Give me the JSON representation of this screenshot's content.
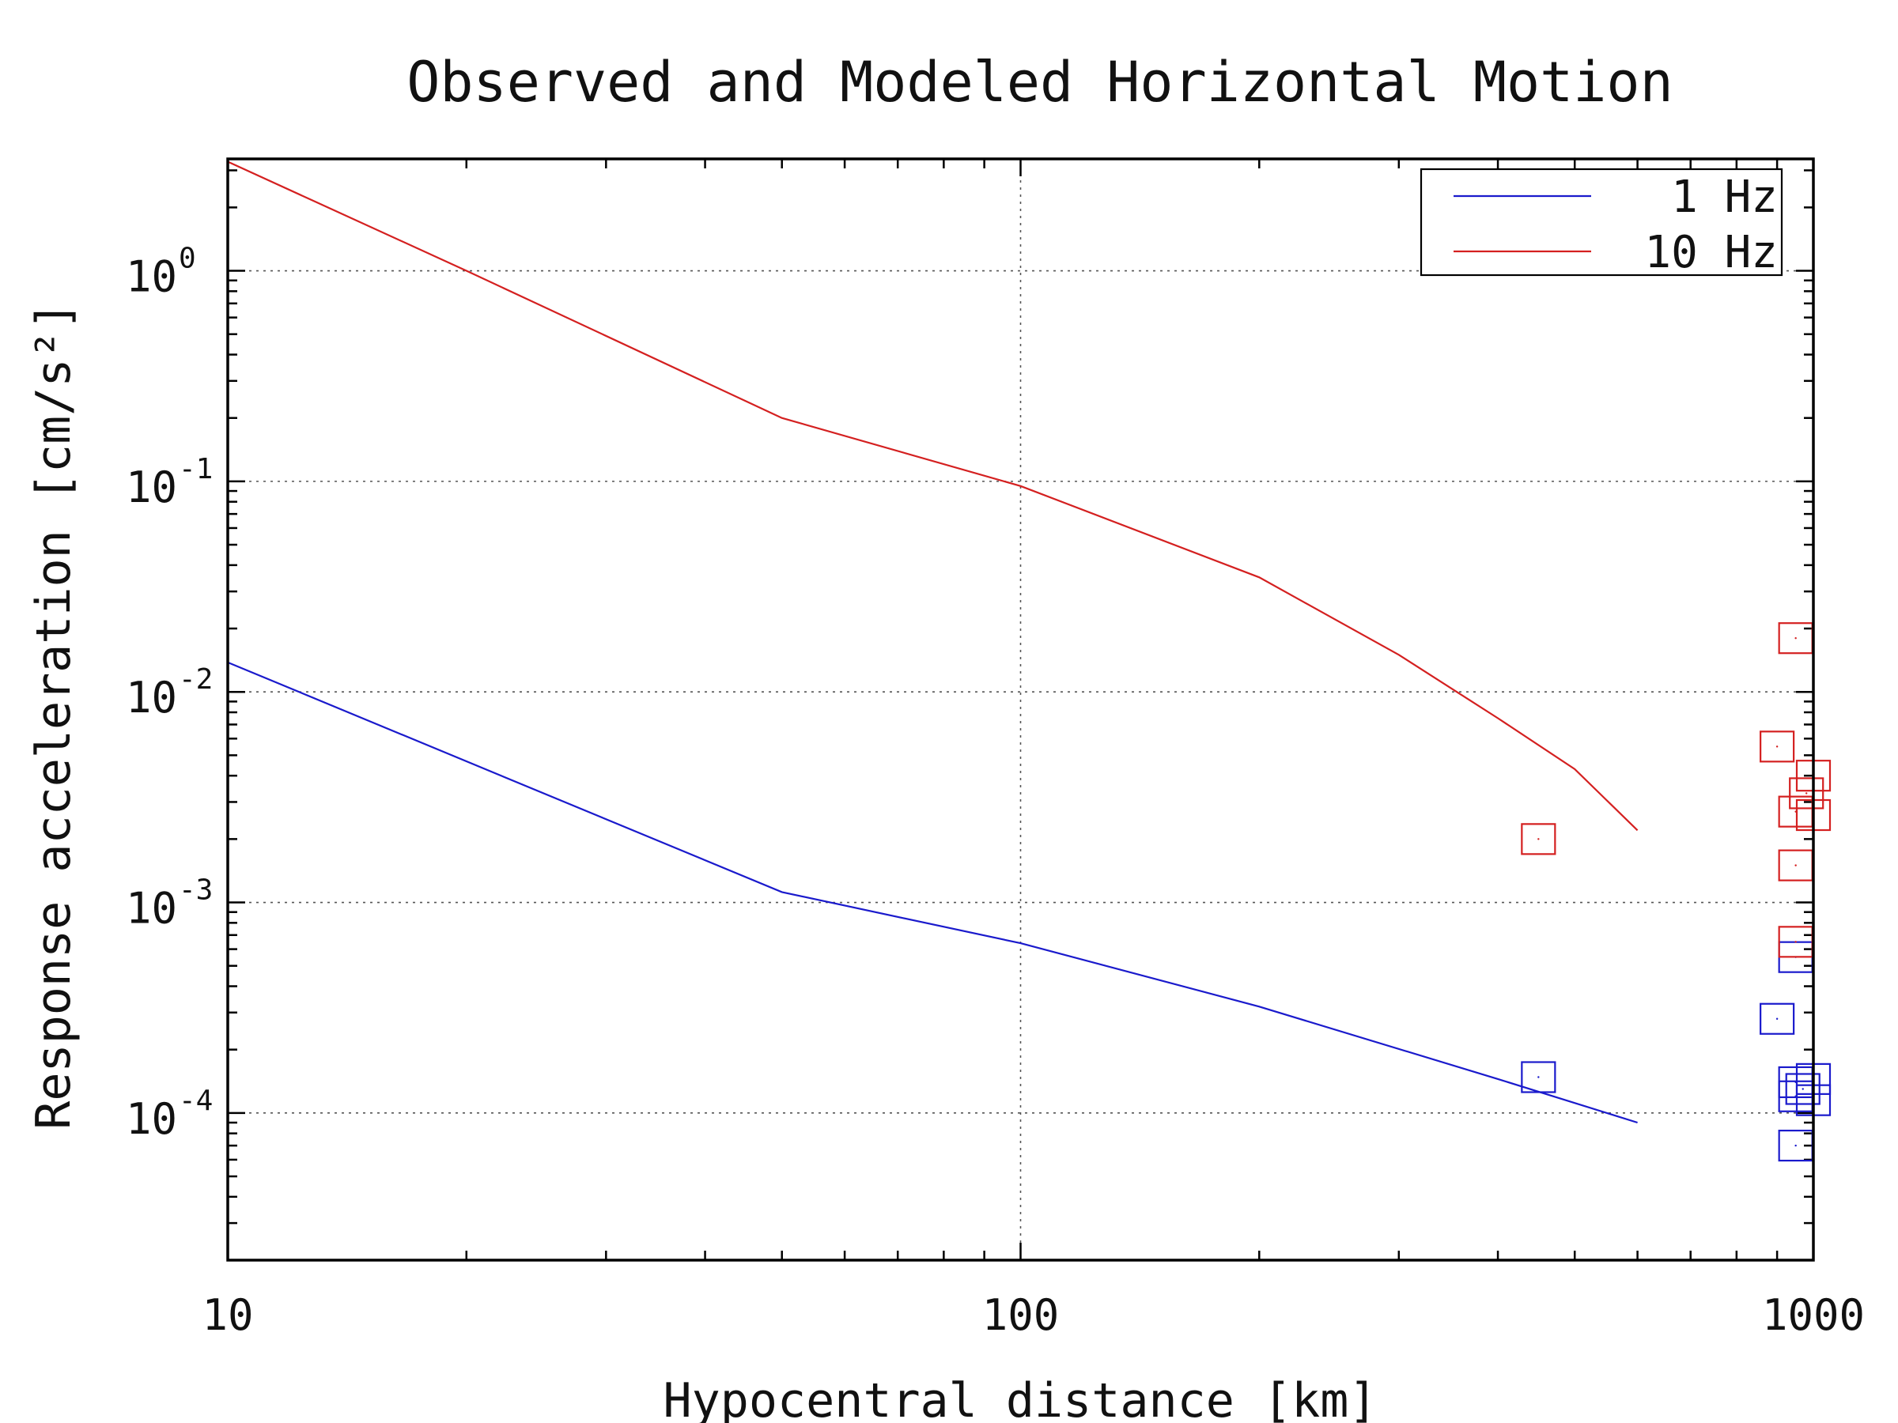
{
  "chart_data": {
    "type": "line",
    "title": "Observed and Modeled Horizontal Motion",
    "xlabel": "Hypocentral distance [km]",
    "ylabel": "Response acceleration [cm/s²]",
    "x_scale": "log",
    "y_scale": "log",
    "xlim": [
      10,
      1000
    ],
    "ylim": [
      2e-05,
      3.4
    ],
    "grid": true,
    "legend_position": "top-right",
    "x_ticks": [
      {
        "value": 10,
        "label": "10"
      },
      {
        "value": 100,
        "label": "100"
      },
      {
        "value": 1000,
        "label": "1000"
      }
    ],
    "y_ticks": [
      {
        "value": 1,
        "base": "10",
        "exp": "0"
      },
      {
        "value": 0.1,
        "base": "10",
        "exp": "-1"
      },
      {
        "value": 0.01,
        "base": "10",
        "exp": "-2"
      },
      {
        "value": 0.001,
        "base": "10",
        "exp": "-3"
      },
      {
        "value": 0.0001,
        "base": "10",
        "exp": "-4"
      }
    ],
    "series": [
      {
        "name": "1 Hz",
        "color": "#1a1acc",
        "model_line": {
          "x": [
            10,
            50,
            100,
            200,
            400,
            600
          ],
          "y": [
            0.0138,
            0.00112,
            0.00064,
            0.00032,
            0.000145,
            9e-05
          ]
        },
        "observed": {
          "x": [
            450,
            900,
            950,
            950,
            950,
            970,
            1000,
            1000,
            950
          ],
          "y": [
            0.000148,
            0.00028,
            0.00055,
            0.00014,
            0.00012,
            0.00013,
            0.000145,
            0.000115,
            7e-05
          ]
        }
      },
      {
        "name": "10 Hz",
        "color": "#d42020",
        "model_line": {
          "x": [
            10,
            20,
            50,
            100,
            200,
            300,
            400,
            500,
            600
          ],
          "y": [
            3.3,
            1.0,
            0.2,
            0.095,
            0.035,
            0.015,
            0.0075,
            0.0043,
            0.0022
          ]
        },
        "observed": {
          "x": [
            450,
            900,
            950,
            950,
            980,
            1000,
            1000,
            950,
            950
          ],
          "y": [
            0.002,
            0.0055,
            0.018,
            0.0027,
            0.0033,
            0.004,
            0.0026,
            0.0015,
            0.00065
          ]
        }
      }
    ]
  }
}
